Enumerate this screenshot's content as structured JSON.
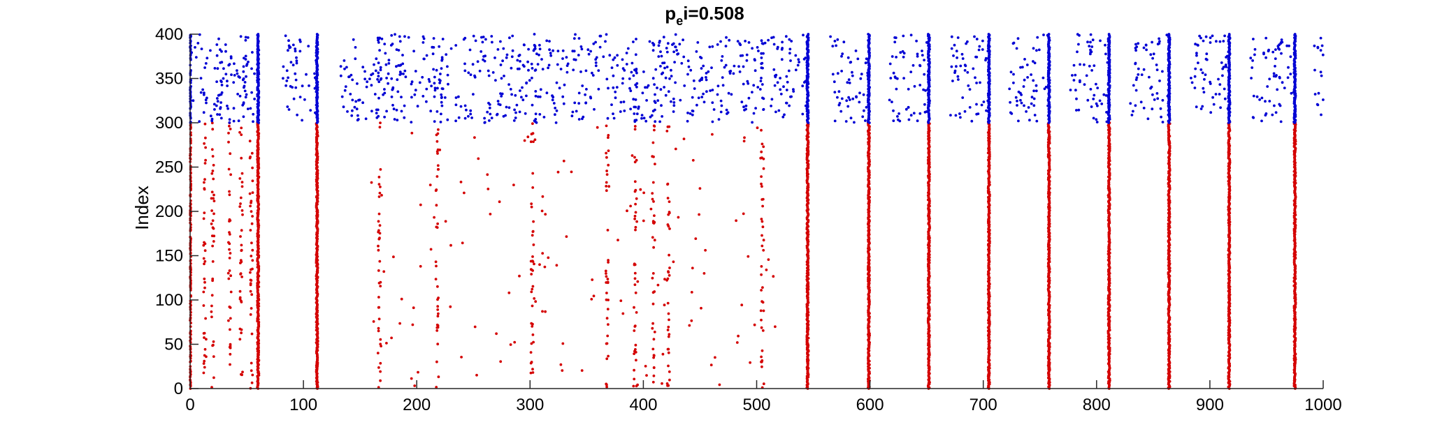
{
  "chart_data": {
    "type": "scatter",
    "title": {
      "main": "p",
      "subscript": "e",
      "rest": "i=0.508"
    },
    "xlabel": "",
    "ylabel": "Index",
    "xlim": [
      0,
      1000
    ],
    "ylim": [
      0,
      400
    ],
    "xticks": [
      0,
      100,
      200,
      300,
      400,
      500,
      600,
      700,
      800,
      900,
      1000
    ],
    "yticks": [
      0,
      50,
      100,
      150,
      200,
      250,
      300,
      350,
      400
    ],
    "grid": false,
    "legend": "none",
    "series": [
      {
        "color": "#d40000",
        "index_range": [
          0,
          300
        ],
        "synchronous_burst_times": [
          0,
          60,
          112,
          545,
          599,
          652,
          705,
          758,
          811,
          864,
          917,
          975
        ],
        "dense_sparse_columns": [
          13,
          20,
          35,
          45,
          54,
          167,
          218,
          302,
          368,
          393,
          409,
          422,
          505
        ],
        "async_regions": [
          [
            160,
            520
          ]
        ],
        "async_density": 0.0125
      },
      {
        "color": "#0000d4",
        "index_range": [
          300,
          400
        ],
        "synchronous_burst_times": [
          0,
          60,
          112,
          545,
          599,
          652,
          705,
          758,
          811,
          864,
          917,
          975
        ],
        "dense_sparse_columns": [
          27,
          48,
          167,
          222,
          305,
          393,
          505
        ],
        "async_regions": [
          [
            0,
            60
          ],
          [
            82,
            112
          ],
          [
            133,
            545
          ],
          [
            565,
            600
          ],
          [
            617,
            652
          ],
          [
            670,
            705
          ],
          [
            723,
            758
          ],
          [
            776,
            811
          ],
          [
            829,
            864
          ],
          [
            882,
            917
          ],
          [
            935,
            975
          ],
          [
            990,
            1000
          ]
        ],
        "async_density": 0.16
      }
    ]
  }
}
